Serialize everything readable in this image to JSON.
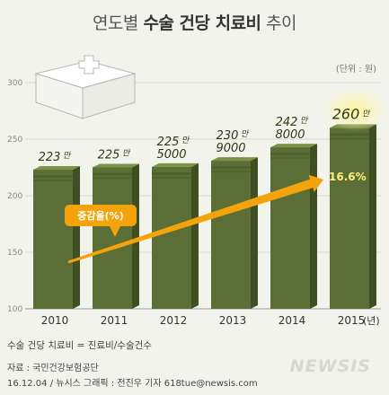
{
  "title": {
    "part1": "연도별 ",
    "part2": "수술 건당 치료비",
    "part3": " 추이"
  },
  "unit_label": "(단위 : 원)",
  "formula": "수술 건당 치료비 = 진료비/수술건수",
  "source_line1": "자료 : 국민건강보험공단",
  "source_line2": "16.12.04 / 뉴시스 그래픽 : 전진우 기자 618tue@newsis.com",
  "watermark": "NEWSIS",
  "colors": {
    "bar_front": "#5b6e35",
    "bar_side": "#3f4f22",
    "bar_top": "#7d9147",
    "arrow": "#f3a30c",
    "highlight": "#fbf59c"
  },
  "chart_data": {
    "type": "bar",
    "categories": [
      "2010",
      "2011",
      "2012",
      "2013",
      "2014",
      "2015"
    ],
    "x_unit_label": "(년)",
    "values": [
      2230000,
      2250000,
      2255000,
      2309000,
      2428000,
      2600000
    ],
    "value_labels": [
      {
        "big": "223",
        "suffix": "만",
        "second": ""
      },
      {
        "big": "225",
        "suffix": "만",
        "second": ""
      },
      {
        "big": "225",
        "suffix": "만",
        "second": "5000"
      },
      {
        "big": "230",
        "suffix": "만",
        "second": "9000"
      },
      {
        "big": "242",
        "suffix": "만",
        "second": "8000"
      },
      {
        "big": "260",
        "suffix": "만",
        "second": ""
      }
    ],
    "y_ticks": [
      100,
      150,
      200,
      250,
      300
    ],
    "ylim": [
      100,
      300
    ],
    "y_tick_unit": "만",
    "trend_label": "증감율(%)",
    "trend_value": "16.6%",
    "grid": true
  }
}
